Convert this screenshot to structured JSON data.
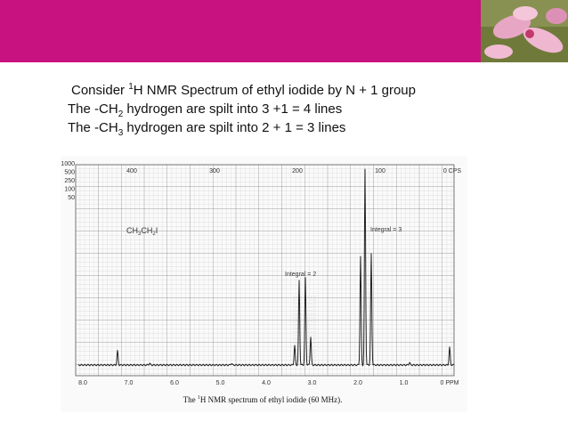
{
  "slide": {
    "text_lines": [
      [
        "Consider ",
        "1",
        "H NMR Spectrum of ethyl iodide  by N + 1 group"
      ],
      [
        "The -CH",
        "2",
        " hydrogen are spilt into 3 +1 = 4 lines"
      ],
      [
        "The -CH",
        "3",
        " hydrogen are spilt into 2 + 1 = 3 lines"
      ]
    ]
  },
  "spectrum": {
    "compound_label": [
      "CH",
      "3",
      "CH",
      "2",
      "I"
    ],
    "integral_labels": [
      "Integral = 3",
      "Integral = 2"
    ],
    "ppm_labels": [
      "8.0",
      "7.0",
      "6.0",
      "5.0",
      "4.0",
      "3.0",
      "2.0",
      "1.0",
      "0 PPM"
    ],
    "left_scale": [
      "1000",
      "500",
      "250",
      "100",
      "50"
    ],
    "top_cps": [
      "400",
      "300",
      "200",
      "100",
      "0 CPS"
    ],
    "caption": [
      "The ",
      "1",
      "H NMR spectrum of ethyl iodide (60 MHz)."
    ]
  }
}
